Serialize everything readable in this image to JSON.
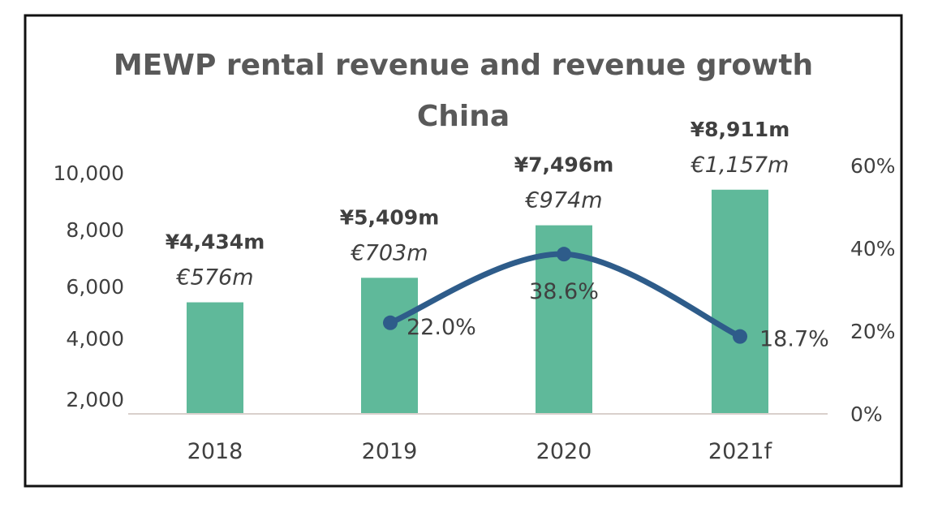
{
  "chart_data": {
    "type": "bar+line",
    "title": "MEWP rental revenue and revenue growth",
    "subtitle": "China",
    "categories": [
      "2018",
      "2019",
      "2020",
      "2021f"
    ],
    "series": [
      {
        "name": "Rental revenue (¥m)",
        "type": "bar",
        "axis": "left",
        "values": [
          4434,
          5409,
          7496,
          8911
        ],
        "labels_yen": [
          "¥4,434m",
          "¥5,409m",
          "¥7,496m",
          "¥8,911m"
        ],
        "labels_eur": [
          "€576m",
          "€703m",
          "€974m",
          "€1,157m"
        ]
      },
      {
        "name": "Revenue growth",
        "type": "line",
        "axis": "right",
        "values": [
          null,
          22.0,
          38.6,
          18.7
        ],
        "labels": [
          "",
          "22.0%",
          "38.6%",
          "18.7%"
        ]
      }
    ],
    "left_ticks": [
      "10,000",
      "8,000",
      "6,000",
      "4,000",
      "2,000"
    ],
    "right_ticks": [
      "60%",
      "40%",
      "20%",
      "0%"
    ],
    "right_ylim": [
      0,
      60
    ],
    "colors": {
      "bar": "#5fb99a",
      "line": "#2e5c8a",
      "axis": "#d9d0cc",
      "border": "#111111"
    }
  }
}
